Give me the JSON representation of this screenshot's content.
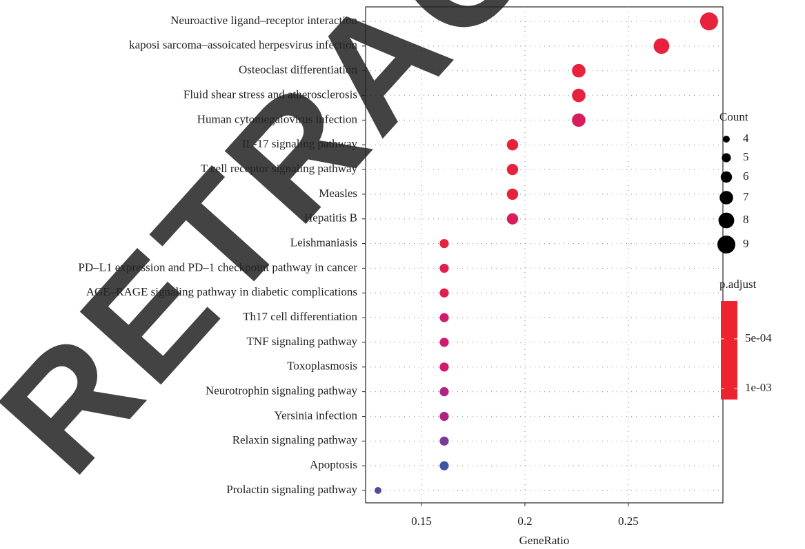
{
  "chart_data": {
    "type": "dot",
    "x_label": "GeneRatio",
    "categories": [
      "Neuroactive ligand–receptor interaction",
      "kaposi sarcoma–assoicated herpesvirus infection",
      "Osteoclast differentiation",
      "Fluid shear stress and atherosclerosis",
      "Human cytomegalovirus infection",
      "IL-17 signaling pathway",
      "T cell receptor signaling pathway",
      "Measles",
      "Hepatitis B",
      "Leishmaniasis",
      "PD–L1 expression and PD–1 checkpoint pathway in cancer",
      "AGE–RAGE signaling pathway in diabetic complications",
      "Th17 cell differentiation",
      "TNF signaling pathway",
      "Toxoplasmosis",
      "Neurotrophin signaling pathway",
      "Yersinia infection",
      "Relaxin signaling pathway",
      "Apoptosis",
      "Prolactin signaling pathway"
    ],
    "values": [
      0.289,
      0.266,
      0.226,
      0.226,
      0.226,
      0.194,
      0.194,
      0.194,
      0.194,
      0.161,
      0.161,
      0.161,
      0.161,
      0.161,
      0.161,
      0.161,
      0.161,
      0.161,
      0.161,
      0.129
    ],
    "count": [
      9,
      8,
      7,
      7,
      7,
      6,
      6,
      6,
      6,
      5,
      5,
      5,
      5,
      5,
      5,
      5,
      5,
      5,
      5,
      4
    ],
    "p_adjust": [
      0.0002,
      0.0002,
      0.0002,
      0.0002,
      0.0004,
      0.0002,
      0.0002,
      0.0002,
      0.0004,
      0.0002,
      0.0003,
      0.0003,
      0.0005,
      0.0005,
      0.0005,
      0.0007,
      0.0007,
      0.0009,
      0.0011,
      0.001
    ],
    "xlim": [
      0.123,
      0.2957
    ],
    "xticks": [
      0.15,
      0.2,
      0.25
    ],
    "grid": true,
    "size_title": "Count",
    "size_legend": [
      4,
      5,
      6,
      7,
      8,
      9
    ],
    "color_title": "p.adjust",
    "clim": [
      0.00012,
      0.00111
    ],
    "cticks": [
      {
        "value": 0.0005,
        "label": "5e-04"
      },
      {
        "value": 0.001,
        "label": "1e-03"
      }
    ],
    "colors": [
      "#EE2330",
      "#C8187E",
      "#3A55A6"
    ],
    "watermark": "RETRACTED"
  }
}
